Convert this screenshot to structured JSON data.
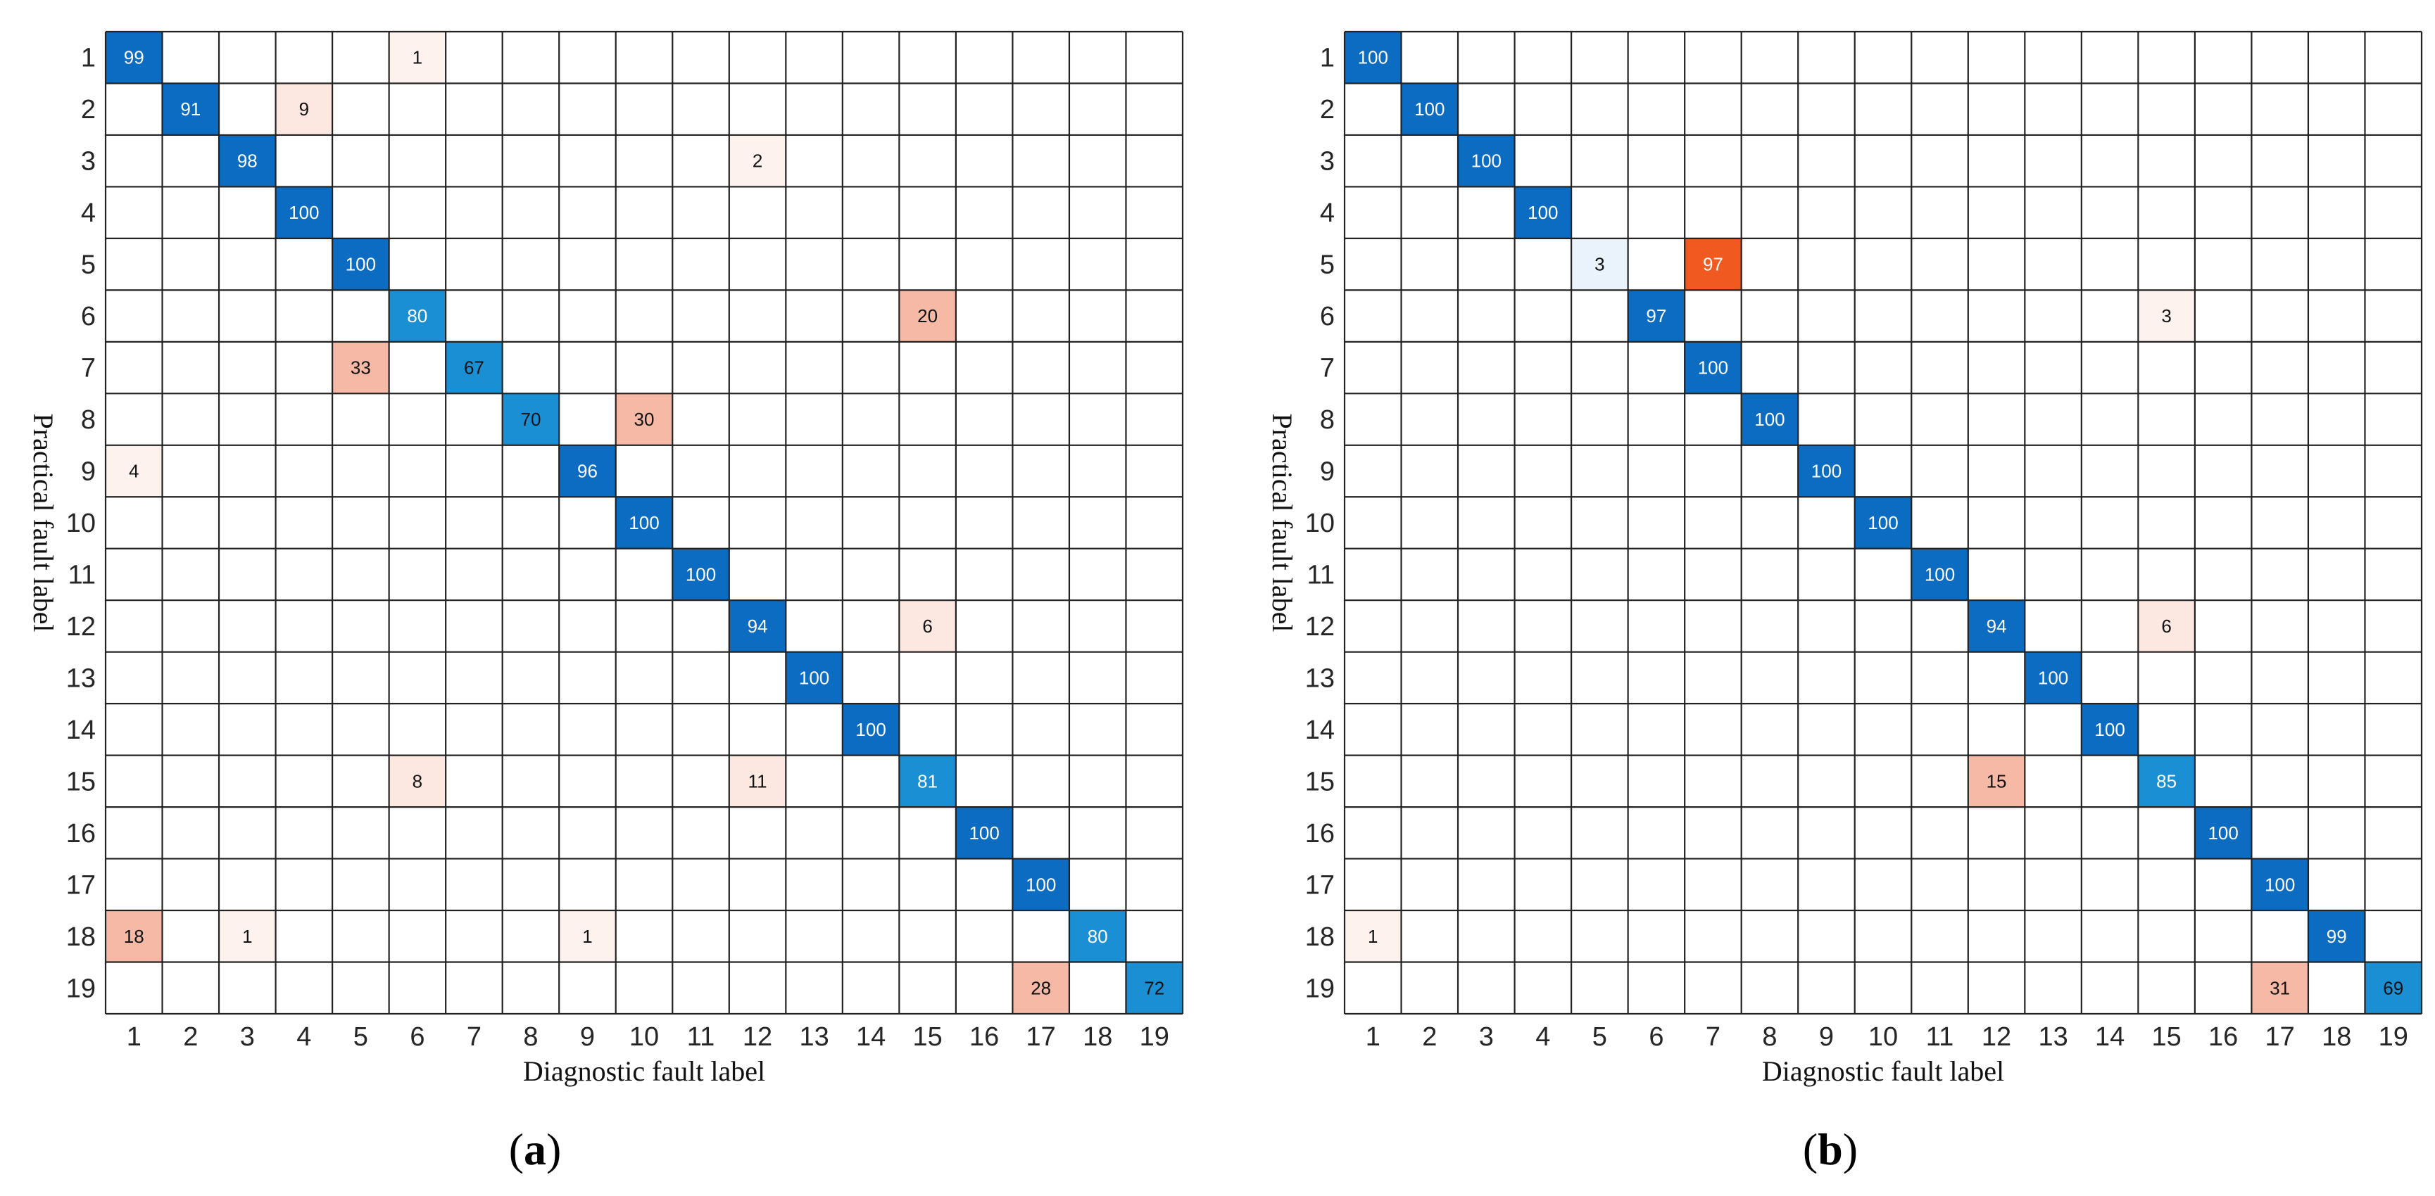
{
  "colors": {
    "diag_dark": "#0b6cc2",
    "diag_mid": "#1a8fd4",
    "diag_light": "#eaf3fb",
    "off_hot": "#f05a20",
    "off_mid": "#f5b9a6",
    "off_light": "#fde8e1",
    "off_faint": "#fdf2ee",
    "grid": "#222222"
  },
  "chart_data": [
    {
      "type": "heatmap",
      "panel_label": "a",
      "xlabel": "Diagnostic fault label",
      "ylabel": "Practical fault label",
      "x_ticks": [
        "1",
        "2",
        "3",
        "4",
        "5",
        "6",
        "7",
        "8",
        "9",
        "10",
        "11",
        "12",
        "13",
        "14",
        "15",
        "16",
        "17",
        "18",
        "19"
      ],
      "y_ticks": [
        "1",
        "2",
        "3",
        "4",
        "5",
        "6",
        "7",
        "8",
        "9",
        "10",
        "11",
        "12",
        "13",
        "14",
        "15",
        "16",
        "17",
        "18",
        "19"
      ],
      "cells": [
        {
          "row": 1,
          "col": 1,
          "value": 99
        },
        {
          "row": 1,
          "col": 6,
          "value": 1
        },
        {
          "row": 2,
          "col": 2,
          "value": 91
        },
        {
          "row": 2,
          "col": 4,
          "value": 9
        },
        {
          "row": 3,
          "col": 3,
          "value": 98
        },
        {
          "row": 3,
          "col": 12,
          "value": 2
        },
        {
          "row": 4,
          "col": 4,
          "value": 100
        },
        {
          "row": 5,
          "col": 5,
          "value": 100
        },
        {
          "row": 6,
          "col": 6,
          "value": 80
        },
        {
          "row": 6,
          "col": 15,
          "value": 20
        },
        {
          "row": 7,
          "col": 5,
          "value": 33
        },
        {
          "row": 7,
          "col": 7,
          "value": 67
        },
        {
          "row": 8,
          "col": 8,
          "value": 70
        },
        {
          "row": 8,
          "col": 10,
          "value": 30
        },
        {
          "row": 9,
          "col": 1,
          "value": 4
        },
        {
          "row": 9,
          "col": 9,
          "value": 96
        },
        {
          "row": 10,
          "col": 10,
          "value": 100
        },
        {
          "row": 11,
          "col": 11,
          "value": 100
        },
        {
          "row": 12,
          "col": 12,
          "value": 94
        },
        {
          "row": 12,
          "col": 15,
          "value": 6
        },
        {
          "row": 13,
          "col": 13,
          "value": 100
        },
        {
          "row": 14,
          "col": 14,
          "value": 100
        },
        {
          "row": 15,
          "col": 6,
          "value": 8
        },
        {
          "row": 15,
          "col": 12,
          "value": 11
        },
        {
          "row": 15,
          "col": 15,
          "value": 81
        },
        {
          "row": 16,
          "col": 16,
          "value": 100
        },
        {
          "row": 17,
          "col": 17,
          "value": 100
        },
        {
          "row": 18,
          "col": 1,
          "value": 18
        },
        {
          "row": 18,
          "col": 3,
          "value": 1
        },
        {
          "row": 18,
          "col": 9,
          "value": 1
        },
        {
          "row": 18,
          "col": 18,
          "value": 80
        },
        {
          "row": 19,
          "col": 17,
          "value": 28
        },
        {
          "row": 19,
          "col": 19,
          "value": 72
        }
      ]
    },
    {
      "type": "heatmap",
      "panel_label": "b",
      "xlabel": "Diagnostic fault label",
      "ylabel": "Practical fault label",
      "x_ticks": [
        "1",
        "2",
        "3",
        "4",
        "5",
        "6",
        "7",
        "8",
        "9",
        "10",
        "11",
        "12",
        "13",
        "14",
        "15",
        "16",
        "17",
        "18",
        "19"
      ],
      "y_ticks": [
        "1",
        "2",
        "3",
        "4",
        "5",
        "6",
        "7",
        "8",
        "9",
        "10",
        "11",
        "12",
        "13",
        "14",
        "15",
        "16",
        "17",
        "18",
        "19"
      ],
      "cells": [
        {
          "row": 1,
          "col": 1,
          "value": 100
        },
        {
          "row": 2,
          "col": 2,
          "value": 100
        },
        {
          "row": 3,
          "col": 3,
          "value": 100
        },
        {
          "row": 4,
          "col": 4,
          "value": 100
        },
        {
          "row": 5,
          "col": 5,
          "value": 3
        },
        {
          "row": 5,
          "col": 7,
          "value": 97
        },
        {
          "row": 6,
          "col": 6,
          "value": 97
        },
        {
          "row": 6,
          "col": 15,
          "value": 3
        },
        {
          "row": 7,
          "col": 7,
          "value": 100
        },
        {
          "row": 8,
          "col": 8,
          "value": 100
        },
        {
          "row": 9,
          "col": 9,
          "value": 100
        },
        {
          "row": 10,
          "col": 10,
          "value": 100
        },
        {
          "row": 11,
          "col": 11,
          "value": 100
        },
        {
          "row": 12,
          "col": 12,
          "value": 94
        },
        {
          "row": 12,
          "col": 15,
          "value": 6
        },
        {
          "row": 13,
          "col": 13,
          "value": 100
        },
        {
          "row": 14,
          "col": 14,
          "value": 100
        },
        {
          "row": 15,
          "col": 12,
          "value": 15
        },
        {
          "row": 15,
          "col": 15,
          "value": 85
        },
        {
          "row": 16,
          "col": 16,
          "value": 100
        },
        {
          "row": 17,
          "col": 17,
          "value": 100
        },
        {
          "row": 18,
          "col": 1,
          "value": 1
        },
        {
          "row": 18,
          "col": 18,
          "value": 99
        },
        {
          "row": 19,
          "col": 17,
          "value": 31
        },
        {
          "row": 19,
          "col": 19,
          "value": 69
        }
      ]
    }
  ]
}
